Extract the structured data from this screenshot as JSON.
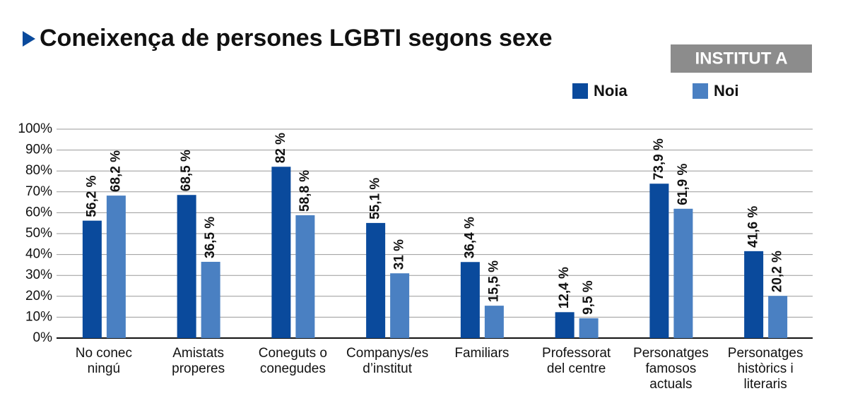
{
  "chart_data": {
    "type": "bar",
    "title": "Coneixença de persones LGBTI segons sexe",
    "subtitle": "INSTITUT A",
    "categories": [
      "No conec\nningú",
      "Amistats\nproperes",
      "Coneguts o\nconegudes",
      "Companys/es\nd’institut",
      "Familiars",
      "Professorat\ndel centre",
      "Personatges\nfamosos\nactuals",
      "Personatges\nhistòrics i\nliteraris"
    ],
    "series": [
      {
        "name": "Noia",
        "color": "#0a4a9c",
        "values": [
          56.2,
          68.5,
          82,
          55.1,
          36.4,
          12.4,
          73.9,
          41.6
        ],
        "value_labels": [
          "56,2 %",
          "68,5 %",
          "82 %",
          "55,1 %",
          "36,4 %",
          "12,4 %",
          "73,9 %",
          "41,6 %"
        ]
      },
      {
        "name": "Noi",
        "color": "#4a80c2",
        "values": [
          68.2,
          36.5,
          58.8,
          31,
          15.5,
          9.5,
          61.9,
          20.2
        ],
        "value_labels": [
          "68,2 %",
          "36,5 %",
          "58,8 %",
          "31 %",
          "15,5 %",
          "9,5 %",
          "61,9 %",
          "20,2 %"
        ]
      }
    ],
    "ylim": [
      0,
      100
    ],
    "yticks": [
      {
        "value": 0,
        "label": "0%"
      },
      {
        "value": 10,
        "label": "10%"
      },
      {
        "value": 20,
        "label": "20%"
      },
      {
        "value": 30,
        "label": "30%"
      },
      {
        "value": 40,
        "label": "40%"
      },
      {
        "value": 50,
        "label": "50%"
      },
      {
        "value": 60,
        "label": "60%"
      },
      {
        "value": 70,
        "label": "70%"
      },
      {
        "value": 80,
        "label": "80%"
      },
      {
        "value": 90,
        "label": "90%"
      },
      {
        "value": 100,
        "label": "100%"
      }
    ],
    "grid": true
  }
}
